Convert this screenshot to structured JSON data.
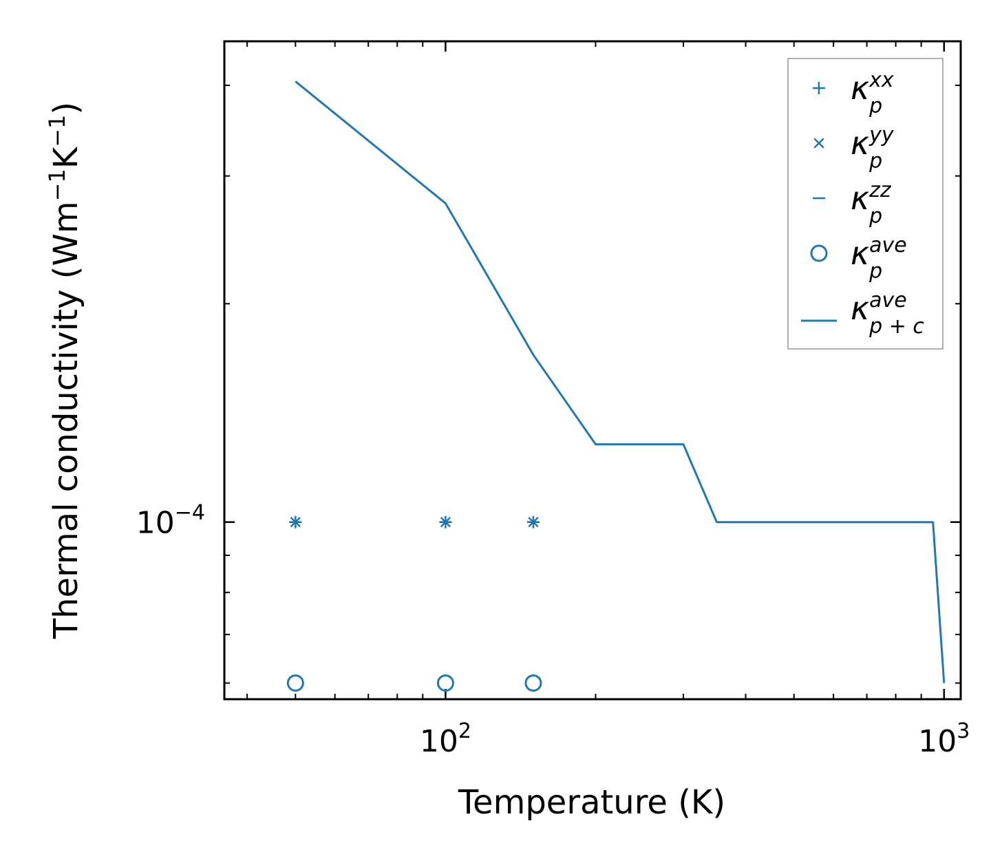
{
  "chart_data": {
    "type": "line",
    "xlabel": "Temperature (K)",
    "ylabel": {
      "main": "Thermal conductivity (Wm",
      "exp1": "−1",
      "mid": "K",
      "exp2": "−1",
      "end": ")"
    },
    "x_scale": "log",
    "y_scale": "log",
    "xlim": [
      36,
      1080
    ],
    "ylim": [
      5.7e-05,
      0.00046
    ],
    "x_ticks": [
      {
        "value": 100,
        "base": "10",
        "exp": "2"
      },
      {
        "value": 1000,
        "base": "10",
        "exp": "3"
      }
    ],
    "y_ticks": [
      {
        "value": 0.0001,
        "base": "10",
        "exp": "−4"
      }
    ],
    "grid": false,
    "legend_position": "top-right",
    "color": "#1f77b4",
    "series": [
      {
        "name": {
          "base": "κ",
          "sup": "xx",
          "sub": "p"
        },
        "marker": "plus",
        "x": [
          50,
          100,
          150
        ],
        "y": [
          0.0001,
          0.0001,
          0.0001
        ]
      },
      {
        "name": {
          "base": "κ",
          "sup": "yy",
          "sub": "p"
        },
        "marker": "x",
        "x": [
          50,
          100,
          150
        ],
        "y": [
          0.0001,
          0.0001,
          0.0001
        ]
      },
      {
        "name": {
          "base": "κ",
          "sup": "zz",
          "sub": "p"
        },
        "marker": "hline",
        "x": [
          50,
          100,
          150
        ],
        "y": [
          0.0001,
          0.0001,
          0.0001
        ]
      },
      {
        "name": {
          "base": "κ",
          "sup": "ave",
          "sub": "p"
        },
        "marker": "circle",
        "x": [
          50,
          100,
          150
        ],
        "y": [
          6e-05,
          6e-05,
          6e-05
        ]
      },
      {
        "name": {
          "base": "κ",
          "sup": "ave",
          "sub": "p + c"
        },
        "marker": "line",
        "x": [
          50,
          100,
          150,
          200,
          300,
          350,
          950,
          1000
        ],
        "y": [
          0.000405,
          0.000275,
          0.00017,
          0.000128,
          0.000128,
          0.0001,
          0.0001,
          6e-05
        ]
      }
    ]
  }
}
